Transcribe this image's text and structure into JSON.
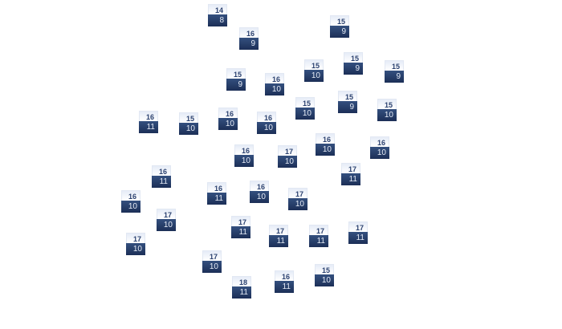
{
  "colors": {
    "node_top": "#eef2fa",
    "node_bottom": "#24396a",
    "top_text": "#2c4270",
    "bottom_text": "#e6ecf7"
  },
  "nodes": [
    {
      "top": "14",
      "bottom": "8"
    },
    {
      "top": "16",
      "bottom": "9"
    },
    {
      "top": "15",
      "bottom": "9"
    },
    {
      "top": "15",
      "bottom": "9"
    },
    {
      "top": "16",
      "bottom": "10"
    },
    {
      "top": "15",
      "bottom": "10"
    },
    {
      "top": "15",
      "bottom": "9"
    },
    {
      "top": "15",
      "bottom": "9"
    },
    {
      "top": "16",
      "bottom": "11"
    },
    {
      "top": "15",
      "bottom": "10"
    },
    {
      "top": "16",
      "bottom": "10"
    },
    {
      "top": "16",
      "bottom": "10"
    },
    {
      "top": "15",
      "bottom": "10"
    },
    {
      "top": "15",
      "bottom": "9"
    },
    {
      "top": "15",
      "bottom": "10"
    },
    {
      "top": "16",
      "bottom": "10"
    },
    {
      "top": "16",
      "bottom": "10"
    },
    {
      "top": "16",
      "bottom": "10"
    },
    {
      "top": "17",
      "bottom": "10"
    },
    {
      "top": "17",
      "bottom": "11"
    },
    {
      "top": "16",
      "bottom": "11"
    },
    {
      "top": "16",
      "bottom": "10"
    },
    {
      "top": "16",
      "bottom": "11"
    },
    {
      "top": "16",
      "bottom": "10"
    },
    {
      "top": "17",
      "bottom": "10"
    },
    {
      "top": "17",
      "bottom": "10"
    },
    {
      "top": "17",
      "bottom": "11"
    },
    {
      "top": "17",
      "bottom": "11"
    },
    {
      "top": "17",
      "bottom": "11"
    },
    {
      "top": "17",
      "bottom": "11"
    },
    {
      "top": "17",
      "bottom": "10"
    },
    {
      "top": "17",
      "bottom": "10"
    },
    {
      "top": "18",
      "bottom": "11"
    },
    {
      "top": "16",
      "bottom": "11"
    },
    {
      "top": "15",
      "bottom": "10"
    }
  ]
}
